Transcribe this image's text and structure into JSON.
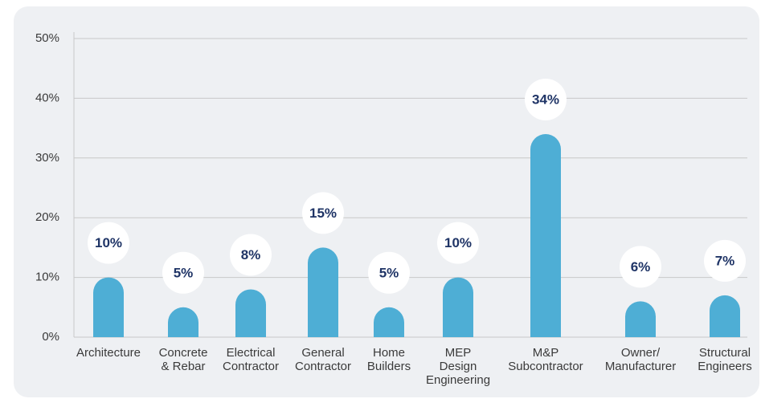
{
  "chart_data": {
    "type": "bar",
    "categories": [
      "Architecture",
      "Concrete\n& Rebar",
      "Electrical\nContractor",
      "General\nContractor",
      "Home\nBuilders",
      "MEP\nDesign\nEngineering",
      "M&P\nSubcontractor",
      "Owner/\nManufacturer",
      "Structural\nEngineers"
    ],
    "values": [
      10,
      5,
      8,
      15,
      5,
      10,
      34,
      6,
      7
    ],
    "value_labels": [
      "10%",
      "5%",
      "8%",
      "15%",
      "5%",
      "10%",
      "34%",
      "6%",
      "7%"
    ],
    "color": "#4eaed5",
    "ylim": [
      0,
      50
    ],
    "yticks": [
      {
        "value": 0,
        "label": "0%"
      },
      {
        "value": 10,
        "label": "10%"
      },
      {
        "value": 20,
        "label": "20%"
      },
      {
        "value": 30,
        "label": "30%"
      },
      {
        "value": 40,
        "label": "40%"
      },
      {
        "value": 50,
        "label": "50%"
      }
    ],
    "grid": true
  }
}
